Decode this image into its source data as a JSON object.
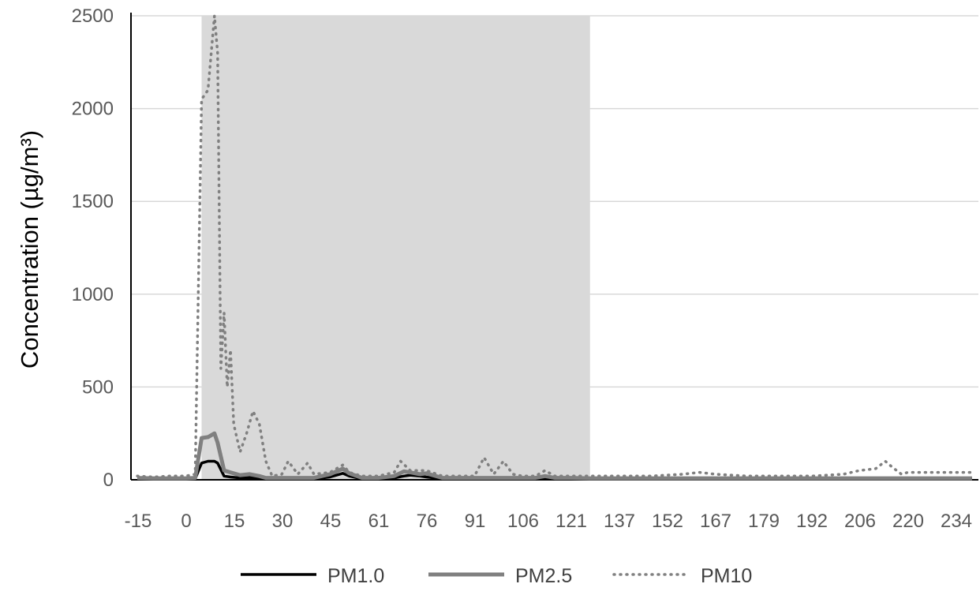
{
  "chart_data": {
    "type": "line",
    "title": "",
    "xlabel": "",
    "ylabel": "Concentration (µg/m³)",
    "ylim": [
      0,
      2500
    ],
    "yticks": [
      0,
      500,
      1000,
      1500,
      2000,
      2500
    ],
    "grid": true,
    "legend_position": "bottom",
    "x_tick_labels": [
      "-15",
      "0",
      "15",
      "30",
      "45",
      "61",
      "76",
      "91",
      "106",
      "121",
      "137",
      "152",
      "167",
      "179",
      "192",
      "206",
      "220",
      "234"
    ],
    "shaded_region": {
      "x_start": 0,
      "x_end": 121,
      "color": "#d9d9d9"
    },
    "series": [
      {
        "name": "PM1.0",
        "color": "#000000",
        "style": "solid",
        "x": [
          -20,
          -15,
          -10,
          -5,
          -2,
          0,
          2,
          4,
          5,
          7,
          9,
          12,
          15,
          18,
          20,
          25,
          30,
          35,
          40,
          44,
          46,
          50,
          55,
          60,
          63,
          65,
          68,
          70,
          75,
          80,
          85,
          90,
          95,
          100,
          104,
          107,
          110,
          115,
          121,
          130,
          140,
          150,
          160,
          170,
          180,
          190,
          200,
          210,
          215,
          220,
          230,
          240
        ],
        "y": [
          5,
          5,
          4,
          5,
          5,
          90,
          100,
          100,
          90,
          20,
          15,
          10,
          12,
          10,
          5,
          5,
          5,
          5,
          15,
          35,
          20,
          5,
          5,
          10,
          20,
          25,
          20,
          15,
          5,
          5,
          5,
          5,
          5,
          5,
          5,
          10,
          5,
          5,
          5,
          5,
          5,
          5,
          5,
          5,
          5,
          5,
          5,
          5,
          5,
          5,
          5,
          5
        ]
      },
      {
        "name": "PM2.5",
        "color": "#808080",
        "style": "solid",
        "x": [
          -20,
          -15,
          -10,
          -5,
          -2,
          0,
          2,
          4,
          5,
          7,
          9,
          12,
          15,
          18,
          20,
          25,
          30,
          35,
          40,
          44,
          46,
          50,
          55,
          60,
          63,
          65,
          68,
          70,
          75,
          80,
          85,
          90,
          95,
          100,
          104,
          107,
          110,
          115,
          121,
          130,
          140,
          150,
          160,
          170,
          180,
          190,
          200,
          210,
          215,
          220,
          230,
          240
        ],
        "y": [
          10,
          8,
          8,
          8,
          10,
          225,
          230,
          250,
          200,
          50,
          40,
          25,
          30,
          20,
          10,
          10,
          10,
          10,
          30,
          60,
          35,
          10,
          10,
          20,
          45,
          40,
          30,
          35,
          10,
          10,
          10,
          10,
          10,
          10,
          10,
          20,
          10,
          10,
          8,
          8,
          8,
          8,
          8,
          8,
          8,
          8,
          8,
          8,
          8,
          8,
          8,
          8
        ]
      },
      {
        "name": "PM10",
        "color": "#808080",
        "style": "dotted",
        "x": [
          -20,
          -15,
          -10,
          -5,
          -2,
          0,
          2,
          4,
          5,
          6,
          7,
          8,
          9,
          10,
          12,
          14,
          16,
          18,
          20,
          22,
          25,
          27,
          30,
          33,
          35,
          40,
          44,
          46,
          50,
          55,
          60,
          62,
          65,
          70,
          75,
          80,
          85,
          88,
          91,
          94,
          97,
          100,
          104,
          107,
          110,
          115,
          121,
          130,
          140,
          150,
          155,
          160,
          170,
          180,
          190,
          200,
          205,
          210,
          213,
          215,
          218,
          220,
          230,
          240
        ],
        "y": [
          20,
          15,
          20,
          20,
          30,
          2050,
          2100,
          2550,
          2300,
          600,
          900,
          500,
          700,
          300,
          150,
          250,
          370,
          300,
          100,
          20,
          30,
          100,
          30,
          90,
          30,
          40,
          80,
          40,
          20,
          20,
          40,
          100,
          50,
          50,
          20,
          20,
          20,
          120,
          30,
          100,
          30,
          20,
          20,
          50,
          20,
          20,
          20,
          20,
          20,
          30,
          40,
          30,
          20,
          20,
          20,
          30,
          50,
          60,
          100,
          70,
          30,
          40,
          40,
          40
        ]
      }
    ]
  }
}
